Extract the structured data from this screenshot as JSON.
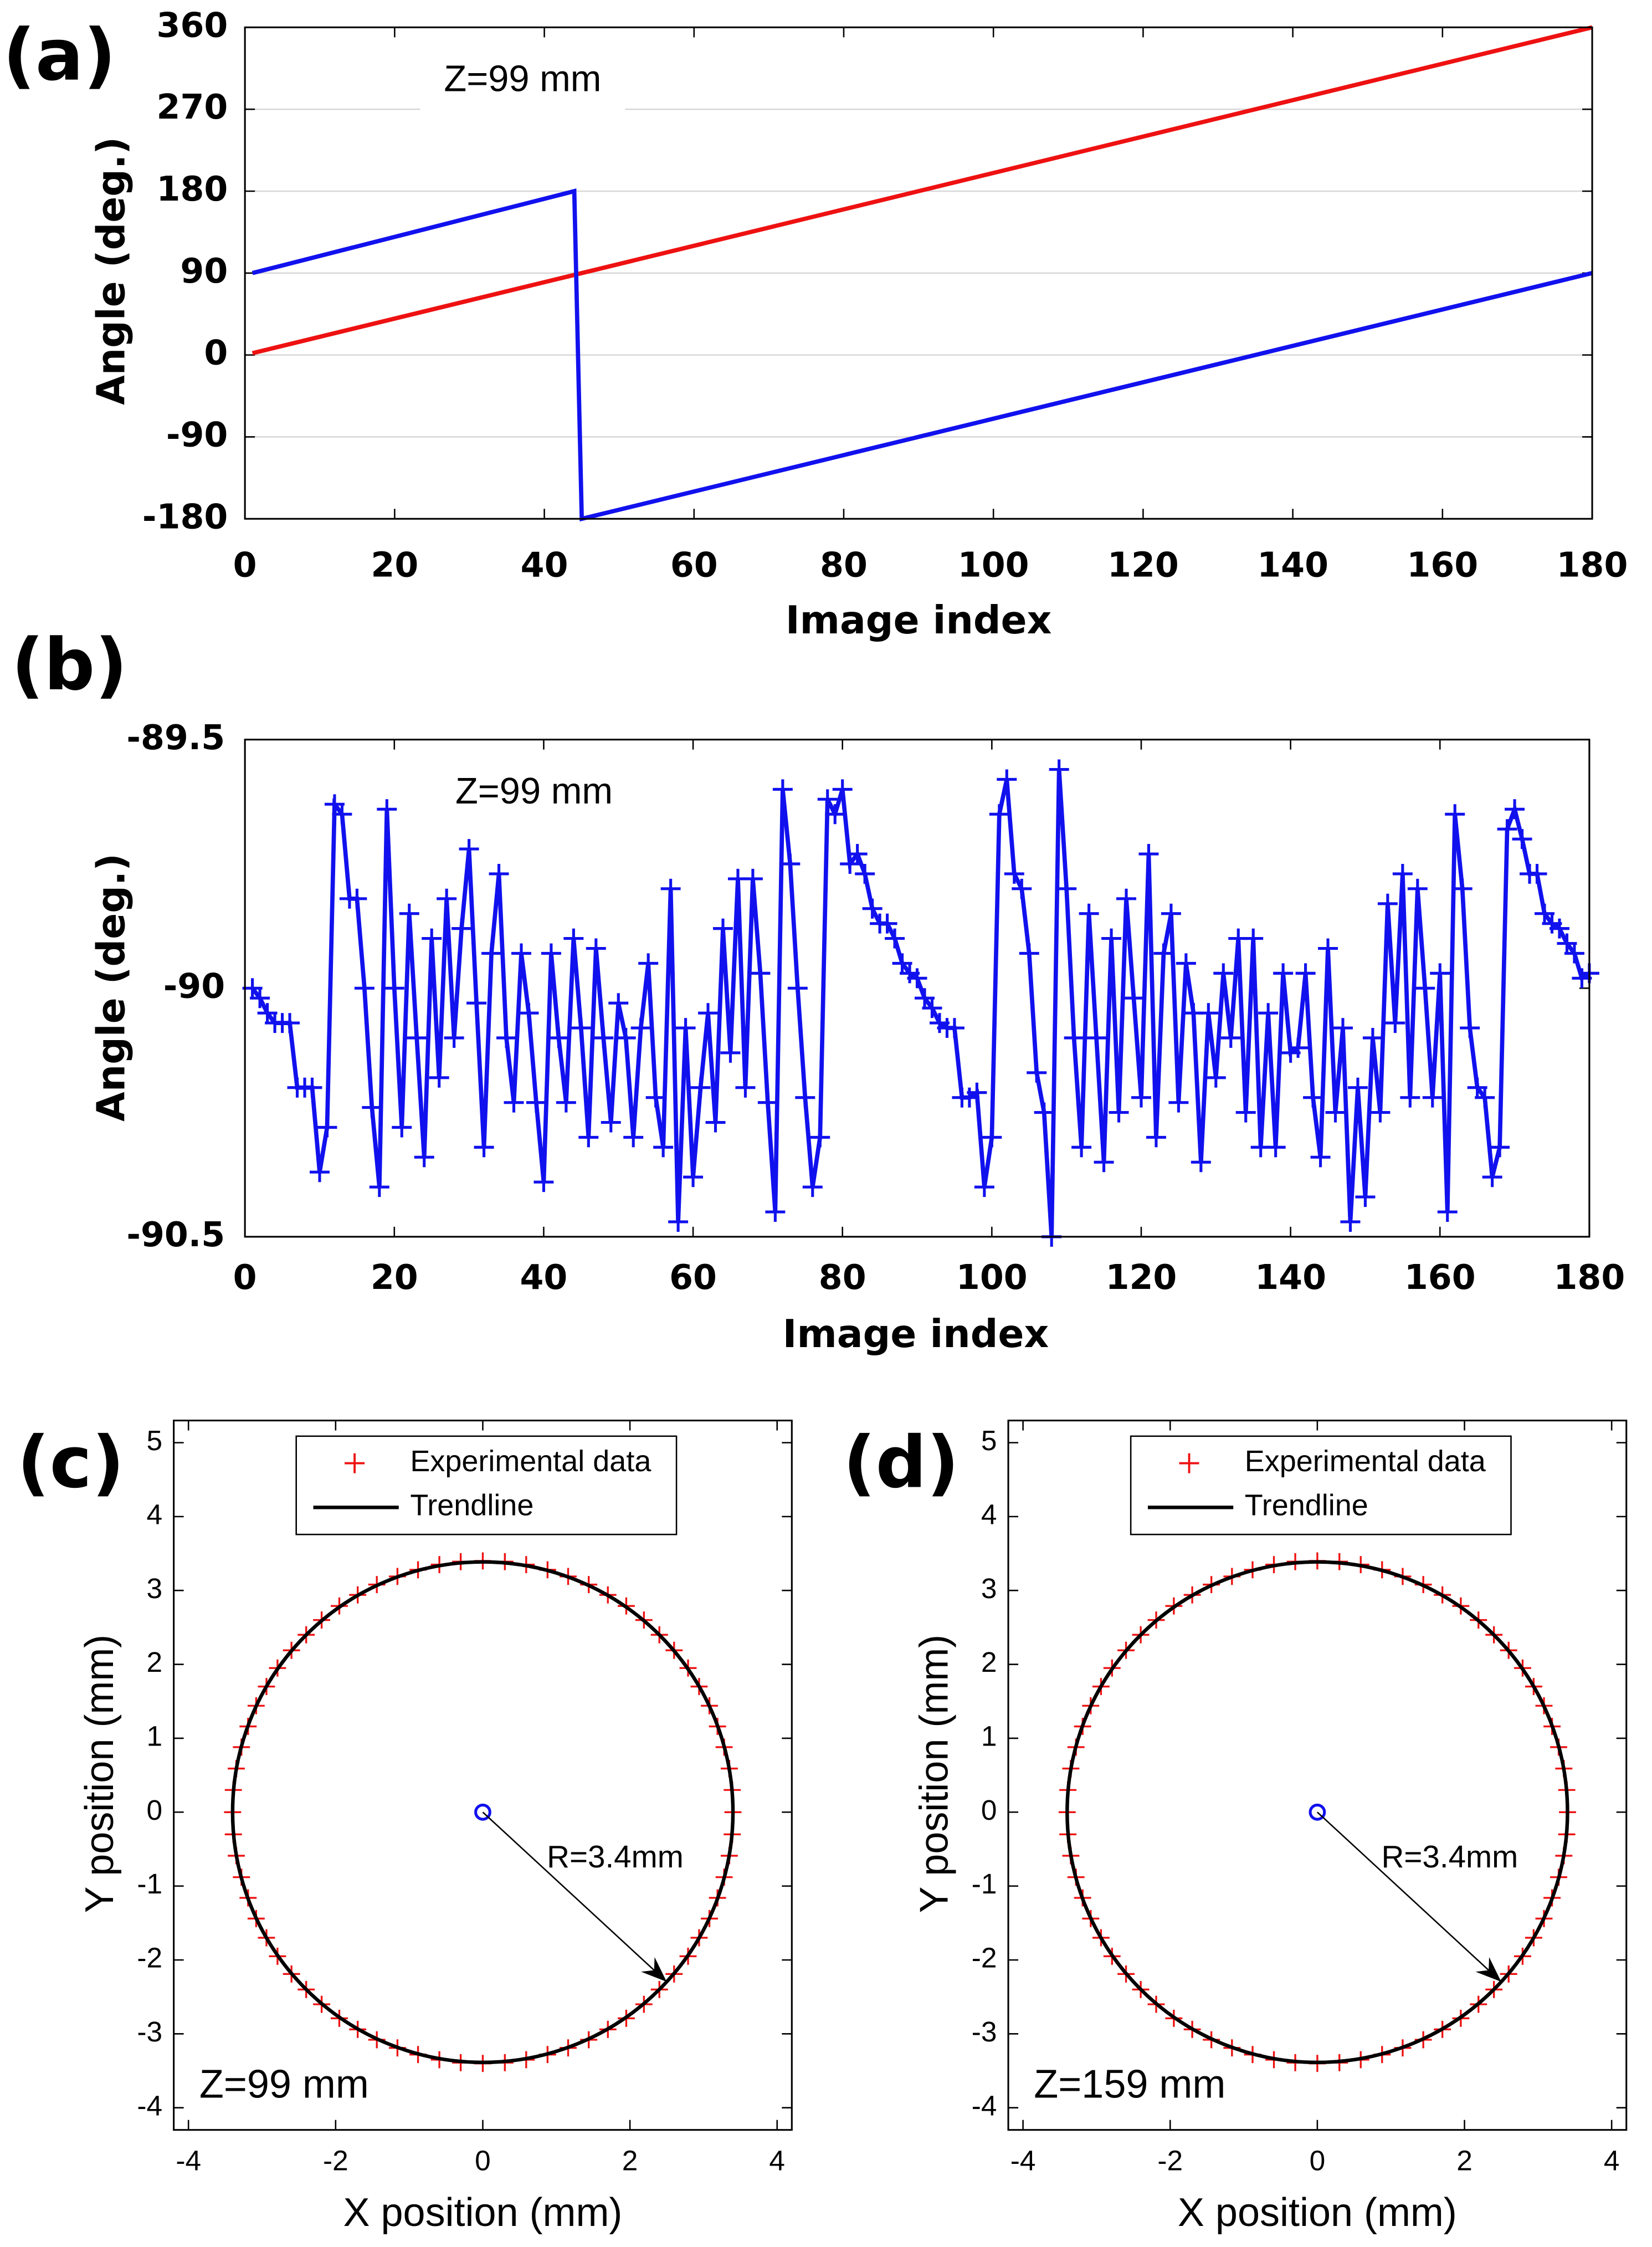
{
  "chart_data": [
    {
      "type": "line",
      "panel_label": "(a)",
      "annotation": "Z=99 mm",
      "xlabel": "Image index",
      "ylabel": "Angle (deg.)",
      "xlim": [
        0,
        180
      ],
      "xticks": [
        0,
        20,
        40,
        60,
        80,
        100,
        120,
        140,
        160,
        180
      ],
      "ylim": [
        -180,
        360
      ],
      "yticks": [
        -180,
        -90,
        0,
        90,
        180,
        270,
        360
      ],
      "grid": true,
      "series": [
        {
          "color": "#ee1111",
          "x": [
            1,
            180
          ],
          "values": [
            2,
            360
          ]
        },
        {
          "color": "#1111ee",
          "x": [
            1,
            44,
            45,
            180
          ],
          "values": [
            90,
            180,
            -180,
            90
          ]
        }
      ]
    },
    {
      "type": "line",
      "panel_label": "(b)",
      "annotation": "Z=99 mm",
      "xlabel": "Image index",
      "ylabel": "Angle (deg.)",
      "xlim": [
        0,
        180
      ],
      "xticks": [
        0,
        20,
        40,
        60,
        80,
        100,
        120,
        140,
        160,
        180
      ],
      "ylim": [
        -90.5,
        -89.5
      ],
      "yticks": [
        -90.5,
        -90,
        -89.5
      ],
      "grid": false,
      "marker": "+",
      "series": [
        {
          "color": "#1111ee",
          "x": [
            1,
            2,
            3,
            4,
            5,
            6,
            7,
            8,
            9,
            10,
            11,
            12,
            13,
            14,
            15,
            16,
            17,
            18,
            19,
            20,
            21,
            22,
            23,
            24,
            25,
            26,
            27,
            28,
            29,
            30,
            31,
            32,
            33,
            34,
            35,
            36,
            37,
            38,
            39,
            40,
            41,
            42,
            43,
            44,
            45,
            46,
            47,
            48,
            49,
            50,
            51,
            52,
            53,
            54,
            55,
            56,
            57,
            58,
            59,
            60,
            61,
            62,
            63,
            64,
            65,
            66,
            67,
            68,
            69,
            70,
            71,
            72,
            73,
            74,
            75,
            76,
            77,
            78,
            79,
            80,
            81,
            82,
            83,
            84,
            85,
            86,
            87,
            88,
            89,
            90,
            91,
            92,
            93,
            94,
            95,
            96,
            97,
            98,
            99,
            100,
            101,
            102,
            103,
            104,
            105,
            106,
            107,
            108,
            109,
            110,
            111,
            112,
            113,
            114,
            115,
            116,
            117,
            118,
            119,
            120,
            121,
            122,
            123,
            124,
            125,
            126,
            127,
            128,
            129,
            130,
            131,
            132,
            133,
            134,
            135,
            136,
            137,
            138,
            139,
            140,
            141,
            142,
            143,
            144,
            145,
            146,
            147,
            148,
            149,
            150,
            151,
            152,
            153,
            154,
            155,
            156,
            157,
            158,
            159,
            160,
            161,
            162,
            163,
            164,
            165,
            166,
            167,
            168,
            169,
            170,
            171,
            172,
            173,
            174,
            175,
            176,
            177,
            178,
            179,
            180
          ],
          "values": [
            -90.0,
            -90.02,
            -90.05,
            -90.07,
            -90.07,
            -90.07,
            -90.2,
            -90.2,
            -90.2,
            -90.37,
            -90.28,
            -89.63,
            -89.65,
            -89.82,
            -89.82,
            -90.0,
            -90.24,
            -90.4,
            -89.64,
            -90.0,
            -90.28,
            -89.85,
            -90.1,
            -90.34,
            -89.9,
            -90.18,
            -89.82,
            -90.1,
            -89.88,
            -89.72,
            -90.03,
            -90.32,
            -89.93,
            -89.77,
            -90.1,
            -90.23,
            -89.93,
            -90.05,
            -90.23,
            -90.39,
            -89.93,
            -90.1,
            -90.23,
            -89.9,
            -90.08,
            -90.3,
            -89.92,
            -90.1,
            -90.27,
            -90.03,
            -90.1,
            -90.3,
            -90.08,
            -89.95,
            -90.22,
            -90.32,
            -89.8,
            -90.47,
            -90.08,
            -90.38,
            -90.2,
            -90.05,
            -90.27,
            -89.88,
            -90.13,
            -89.78,
            -90.2,
            -89.78,
            -89.97,
            -90.23,
            -90.45,
            -89.6,
            -89.75,
            -90.0,
            -90.22,
            -90.4,
            -90.3,
            -89.62,
            -89.65,
            -89.6,
            -89.75,
            -89.73,
            -89.77,
            -89.84,
            -89.87,
            -89.87,
            -89.9,
            -89.95,
            -89.97,
            -89.98,
            -90.02,
            -90.04,
            -90.07,
            -90.08,
            -90.08,
            -90.22,
            -90.22,
            -90.21,
            -90.4,
            -90.3,
            -89.65,
            -89.58,
            -89.77,
            -89.8,
            -89.93,
            -90.17,
            -90.25,
            -90.5,
            -89.56,
            -89.8,
            -90.1,
            -90.32,
            -89.85,
            -90.1,
            -90.35,
            -89.9,
            -90.25,
            -89.82,
            -90.02,
            -90.22,
            -89.73,
            -90.3,
            -89.93,
            -89.85,
            -90.23,
            -89.95,
            -90.05,
            -90.35,
            -90.05,
            -90.18,
            -89.97,
            -90.1,
            -89.9,
            -90.25,
            -89.9,
            -90.32,
            -90.05,
            -90.32,
            -89.97,
            -90.13,
            -90.12,
            -89.97,
            -90.22,
            -90.34,
            -89.92,
            -90.25,
            -90.08,
            -90.47,
            -90.2,
            -90.42,
            -90.1,
            -90.25,
            -89.83,
            -90.07,
            -89.77,
            -90.22,
            -89.8,
            -90.0,
            -90.22,
            -89.97,
            -90.45,
            -89.65,
            -89.8,
            -90.08,
            -90.2,
            -90.22,
            -90.38,
            -90.32,
            -89.68,
            -89.64,
            -89.7,
            -89.77,
            -89.77,
            -89.85,
            -89.87,
            -89.88,
            -89.91,
            -89.93,
            -89.98,
            -89.97
          ]
        }
      ]
    },
    {
      "type": "scatter",
      "panel_label": "(c)",
      "annotations": [
        "Z=99 mm",
        "R=3.4mm"
      ],
      "xlabel": "X position (mm)",
      "ylabel": "Y position (mm)",
      "xlim": [
        -4.2,
        4.2
      ],
      "xticks": [
        -4,
        -2,
        0,
        2,
        4
      ],
      "ylim": [
        -4.3,
        5.3
      ],
      "yticks": [
        -4,
        -3,
        -2,
        -1,
        0,
        1,
        2,
        3,
        4,
        5
      ],
      "legend": "top",
      "center_marker": {
        "x": 0,
        "y": 0,
        "color": "#1111ee"
      },
      "series": [
        {
          "name": "Experimental data",
          "color": "#ee1111",
          "marker": "+",
          "x": [
            3.4,
            3.39,
            3.35,
            3.28,
            3.19,
            3.08,
            2.94,
            2.79,
            2.6,
            2.4,
            2.19,
            1.95,
            1.7,
            1.44,
            1.16,
            0.88,
            0.59,
            0.3,
            0,
            -0.3,
            -0.59,
            -0.88,
            -1.16,
            -1.44,
            -1.7,
            -1.95,
            -2.19,
            -2.4,
            -2.6,
            -2.79,
            -2.94,
            -3.08,
            -3.19,
            -3.28,
            -3.35,
            -3.39,
            -3.4,
            -3.39,
            -3.35,
            -3.28,
            -3.19,
            -3.08,
            -2.94,
            -2.79,
            -2.6,
            -2.4,
            -2.19,
            -1.95,
            -1.7,
            -1.44,
            -1.16,
            -0.88,
            -0.59,
            -0.3,
            0,
            0.3,
            0.59,
            0.88,
            1.16,
            1.44,
            1.7,
            1.95,
            2.19,
            2.4,
            2.6,
            2.79,
            2.94,
            3.08,
            3.19,
            3.28,
            3.35,
            3.39
          ],
          "values": [
            0,
            0.3,
            0.59,
            0.88,
            1.16,
            1.44,
            1.7,
            1.95,
            2.19,
            2.4,
            2.6,
            2.79,
            2.94,
            3.08,
            3.19,
            3.28,
            3.35,
            3.39,
            3.4,
            3.39,
            3.35,
            3.28,
            3.19,
            3.08,
            2.94,
            2.79,
            2.6,
            2.4,
            2.19,
            1.95,
            1.7,
            1.44,
            1.16,
            0.88,
            0.59,
            0.3,
            0,
            -0.3,
            -0.59,
            -0.88,
            -1.16,
            -1.44,
            -1.7,
            -1.95,
            -2.19,
            -2.4,
            -2.6,
            -2.79,
            -2.94,
            -3.08,
            -3.19,
            -3.28,
            -3.35,
            -3.39,
            -3.4,
            -3.39,
            -3.35,
            -3.28,
            -3.19,
            -3.08,
            -2.94,
            -2.79,
            -2.6,
            -2.4,
            -2.19,
            -1.95,
            -1.7,
            -1.44,
            -1.16,
            -0.88,
            -0.59,
            -0.3
          ]
        },
        {
          "name": "Trendline",
          "color": "#000000",
          "center": [
            0,
            0
          ],
          "radius": 3.4
        }
      ]
    },
    {
      "type": "scatter",
      "panel_label": "(d)",
      "annotations": [
        "Z=159 mm",
        "R=3.4mm"
      ],
      "xlabel": "X position (mm)",
      "ylabel": "Y position (mm)",
      "xlim": [
        -4.2,
        4.2
      ],
      "xticks": [
        -4,
        -2,
        0,
        2,
        4
      ],
      "ylim": [
        -4.3,
        5.3
      ],
      "yticks": [
        -4,
        -3,
        -2,
        -1,
        0,
        1,
        2,
        3,
        4,
        5
      ],
      "legend": "top",
      "center_marker": {
        "x": 0,
        "y": 0,
        "color": "#1111ee"
      },
      "series": [
        {
          "name": "Experimental data",
          "color": "#ee1111",
          "marker": "+",
          "x": [
            3.4,
            3.39,
            3.35,
            3.28,
            3.19,
            3.08,
            2.94,
            2.79,
            2.6,
            2.4,
            2.19,
            1.95,
            1.7,
            1.44,
            1.16,
            0.88,
            0.59,
            0.3,
            0,
            -0.3,
            -0.59,
            -0.88,
            -1.16,
            -1.44,
            -1.7,
            -1.95,
            -2.19,
            -2.4,
            -2.6,
            -2.79,
            -2.94,
            -3.08,
            -3.19,
            -3.28,
            -3.35,
            -3.39,
            -3.4,
            -3.39,
            -3.35,
            -3.28,
            -3.19,
            -3.08,
            -2.94,
            -2.79,
            -2.6,
            -2.4,
            -2.19,
            -1.95,
            -1.7,
            -1.44,
            -1.16,
            -0.88,
            -0.59,
            -0.3,
            0,
            0.3,
            0.59,
            0.88,
            1.16,
            1.44,
            1.7,
            1.95,
            2.19,
            2.4,
            2.6,
            2.79,
            2.94,
            3.08,
            3.19,
            3.28,
            3.35,
            3.39
          ],
          "values": [
            0,
            0.3,
            0.59,
            0.88,
            1.16,
            1.44,
            1.7,
            1.95,
            2.19,
            2.4,
            2.6,
            2.79,
            2.94,
            3.08,
            3.19,
            3.28,
            3.35,
            3.39,
            3.4,
            3.39,
            3.35,
            3.28,
            3.19,
            3.08,
            2.94,
            2.79,
            2.6,
            2.4,
            2.19,
            1.95,
            1.7,
            1.44,
            1.16,
            0.88,
            0.59,
            0.3,
            0,
            -0.3,
            -0.59,
            -0.88,
            -1.16,
            -1.44,
            -1.7,
            -1.95,
            -2.19,
            -2.4,
            -2.6,
            -2.79,
            -2.94,
            -3.08,
            -3.19,
            -3.28,
            -3.35,
            -3.39,
            -3.4,
            -3.39,
            -3.35,
            -3.28,
            -3.19,
            -3.08,
            -2.94,
            -2.79,
            -2.6,
            -2.4,
            -2.19,
            -1.95,
            -1.7,
            -1.44,
            -1.16,
            -0.88,
            -0.59,
            -0.3
          ]
        },
        {
          "name": "Trendline",
          "color": "#000000",
          "center": [
            0,
            0
          ],
          "radius": 3.4
        }
      ]
    }
  ]
}
